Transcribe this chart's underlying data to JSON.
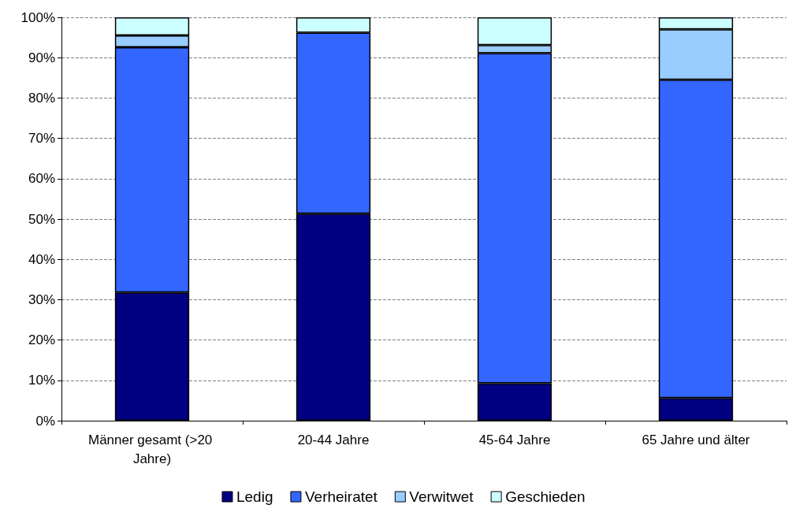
{
  "chart_data": {
    "type": "bar",
    "stacked": true,
    "categories": [
      "Männer gesamt (>20 Jahre)",
      "20-44 Jahre",
      "45-64 Jahre",
      "65 Jahre und älter"
    ],
    "series": [
      {
        "name": "Ledig",
        "color": "#000080",
        "values": [
          31.8,
          51.3,
          9.3,
          5.6
        ]
      },
      {
        "name": "Verheiratet",
        "color": "#3366ff",
        "values": [
          60.8,
          44.9,
          81.8,
          78.9
        ]
      },
      {
        "name": "Verwitwet",
        "color": "#99ccff",
        "values": [
          2.9,
          null,
          2.0,
          12.5
        ]
      },
      {
        "name": "Geschieden",
        "color": "#ccffff",
        "values": [
          4.5,
          3.8,
          6.9,
          3.0
        ]
      }
    ],
    "ylim": [
      0,
      100
    ],
    "yticks": [
      {
        "value": 0,
        "label": "0%"
      },
      {
        "value": 10,
        "label": "10%"
      },
      {
        "value": 20,
        "label": "20%"
      },
      {
        "value": 30,
        "label": "30%"
      },
      {
        "value": 40,
        "label": "40%"
      },
      {
        "value": 50,
        "label": "50%"
      },
      {
        "value": 60,
        "label": "60%"
      },
      {
        "value": 70,
        "label": "70%"
      },
      {
        "value": 80,
        "label": "80%"
      },
      {
        "value": 90,
        "label": "90%"
      },
      {
        "value": 100,
        "label": "100%"
      }
    ],
    "grid": "y",
    "legend": "bottom"
  }
}
